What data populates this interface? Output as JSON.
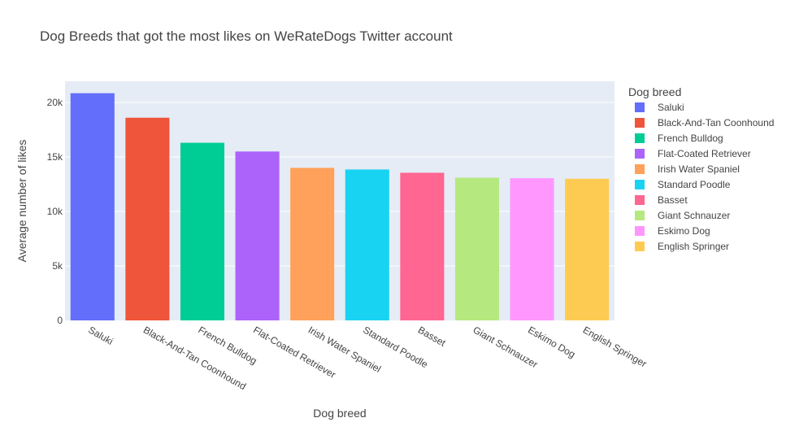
{
  "chart_data": {
    "type": "bar",
    "title": "Dog Breeds that got the most likes on WeRateDogs Twitter account",
    "xlabel": "Dog breed",
    "ylabel": "Average number of likes",
    "categories": [
      "Saluki",
      "Black-And-Tan Coonhound",
      "French Bulldog",
      "Flat-Coated Retriever",
      "Irish Water Spaniel",
      "Standard Poodle",
      "Basset",
      "Giant Schnauzer",
      "Eskimo Dog",
      "English Springer"
    ],
    "values": [
      20850,
      18600,
      16300,
      15500,
      14000,
      13850,
      13550,
      13100,
      13050,
      13000
    ],
    "colors": [
      "#636efa",
      "#EF553B",
      "#00cc96",
      "#ab63fa",
      "#FFA15A",
      "#19d3f3",
      "#FF6692",
      "#B6E880",
      "#FF97FF",
      "#FECB52"
    ],
    "ylim": [
      0,
      22000
    ],
    "yticks": [
      0,
      5000,
      10000,
      15000,
      20000
    ],
    "ytick_labels": [
      "0",
      "5k",
      "10k",
      "15k",
      "20k"
    ],
    "grid": true,
    "legend": {
      "title": "Dog breed",
      "placement": "right"
    },
    "plot_background": "#e5ecf6",
    "grid_color": "#ffffff"
  }
}
